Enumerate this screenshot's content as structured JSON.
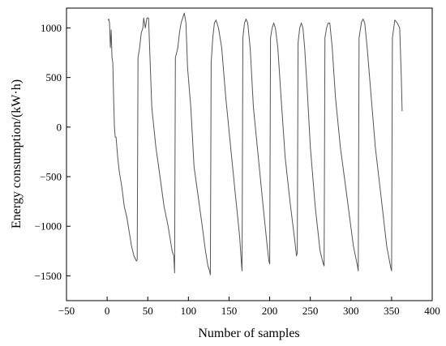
{
  "chart_data": {
    "type": "line",
    "xlabel": "Number of samples",
    "ylabel": "Energy consumption/(kW·h)",
    "xlim": [
      -50,
      400
    ],
    "ylim": [
      -1750,
      1200
    ],
    "xticks": [
      -50,
      0,
      50,
      100,
      150,
      200,
      250,
      300,
      350,
      400
    ],
    "yticks": [
      -1500,
      -1000,
      -500,
      0,
      500,
      1000
    ],
    "xtick_labels": [
      "−50",
      "0",
      "50",
      "100",
      "150",
      "200",
      "250",
      "300",
      "350",
      "400"
    ],
    "ytick_labels": [
      "−1500",
      "−1000",
      "−500",
      "0",
      "500",
      "1000"
    ],
    "grid": false,
    "series": [
      {
        "color": "#555555",
        "x": [
          1,
          2,
          3,
          4,
          5,
          6,
          7,
          8,
          9,
          10,
          11,
          13,
          15,
          18,
          21,
          24,
          27,
          30,
          33,
          36,
          37,
          38,
          40,
          42,
          44,
          45,
          46,
          47,
          49,
          51,
          55,
          60,
          65,
          70,
          75,
          80,
          82,
          83,
          84,
          87,
          89,
          91,
          93,
          95,
          97,
          99,
          103,
          107,
          112,
          117,
          121,
          124,
          126,
          127,
          128,
          130,
          132,
          134,
          137,
          141,
          146,
          152,
          158,
          163,
          165,
          166,
          167,
          169,
          171,
          173,
          176,
          180,
          186,
          192,
          197,
          199,
          200,
          201,
          203,
          205,
          207,
          210,
          214,
          219,
          225,
          231,
          233,
          234,
          235,
          237,
          239,
          241,
          243,
          246,
          250,
          256,
          262,
          266,
          267,
          268,
          270,
          272,
          274,
          277,
          281,
          287,
          295,
          303,
          308,
          309,
          310,
          313,
          315,
          317,
          320,
          324,
          330,
          337,
          344,
          349,
          350,
          351,
          354,
          357,
          360,
          362,
          363
        ],
        "y": [
          1080,
          1090,
          1050,
          800,
          980,
          700,
          650,
          300,
          0,
          -100,
          -100,
          -300,
          -450,
          -600,
          -800,
          -900,
          -1050,
          -1200,
          -1300,
          -1350,
          -1340,
          700,
          800,
          950,
          1000,
          1100,
          1050,
          1000,
          1100,
          1100,
          200,
          -200,
          -500,
          -800,
          -1000,
          -1250,
          -1300,
          -1470,
          700,
          800,
          950,
          1050,
          1100,
          1150,
          1050,
          600,
          200,
          -400,
          -700,
          -1000,
          -1250,
          -1400,
          -1450,
          -1490,
          650,
          900,
          1050,
          1080,
          1000,
          800,
          300,
          -200,
          -700,
          -1100,
          -1350,
          -1450,
          900,
          1050,
          1090,
          1050,
          800,
          200,
          -300,
          -800,
          -1200,
          -1350,
          -1380,
          900,
          1000,
          1050,
          1000,
          800,
          300,
          -300,
          -750,
          -1150,
          -1300,
          -1270,
          850,
          1000,
          1050,
          1000,
          800,
          400,
          -200,
          -800,
          -1250,
          -1380,
          -1400,
          900,
          1000,
          1050,
          1050,
          800,
          300,
          -200,
          -700,
          -1200,
          -1400,
          -1450,
          900,
          1060,
          1090,
          1050,
          800,
          400,
          -200,
          -700,
          -1200,
          -1420,
          -1450,
          900,
          1080,
          1050,
          1000,
          500,
          160
        ]
      }
    ]
  }
}
